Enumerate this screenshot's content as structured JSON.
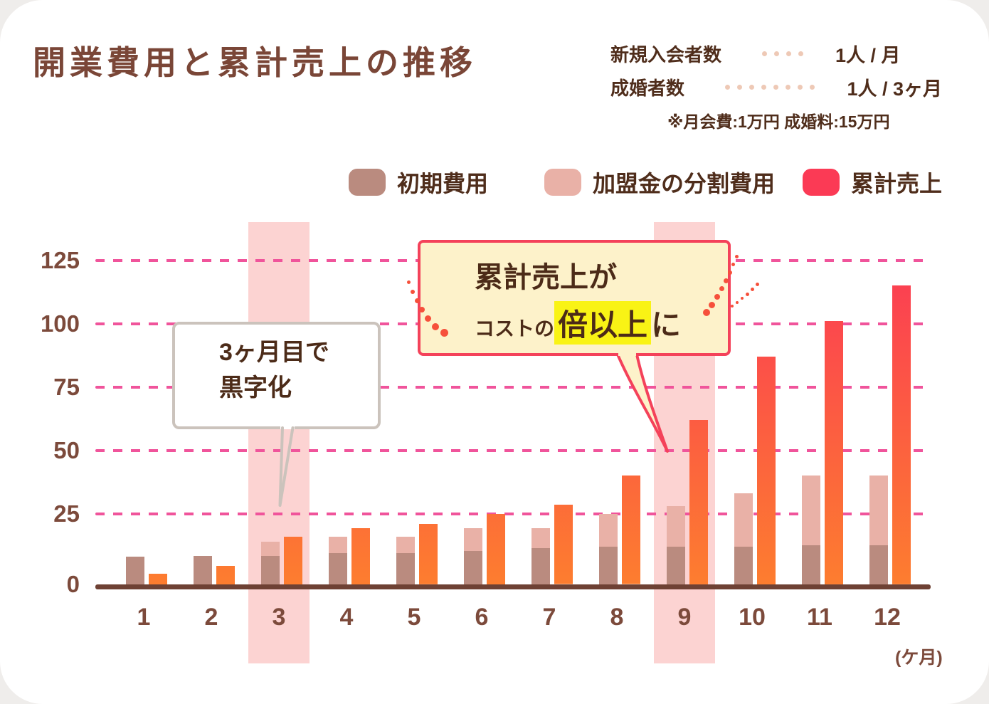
{
  "title": "開業費用と累計売上の推移",
  "assumptions": {
    "rows": [
      {
        "label": "新規入会者数",
        "value": "1人 / 月",
        "dots": 4
      },
      {
        "label": "成婚者数",
        "value": "1人 / 3ヶ月",
        "dots": 8
      }
    ],
    "note": "※月会費:1万円 成婚料:15万円"
  },
  "legend": {
    "items": [
      {
        "label": "初期費用",
        "color": "#ba8b7f"
      },
      {
        "label": "加盟金の分割費用",
        "color": "#e9b1a7"
      },
      {
        "label": "累計売上",
        "color": "#fb3a55"
      }
    ]
  },
  "callouts": {
    "breakeven": {
      "line1": "3ヶ月目で",
      "line2": "黒字化"
    },
    "double": {
      "line1": "累計売上が",
      "line2_prefix": "コストの",
      "line2_highlight": "倍以上",
      "line2_suffix": "に"
    }
  },
  "x_axis_unit": "(ケ月)",
  "chart_data": {
    "type": "bar",
    "title": "開業費用と累計売上の推移",
    "categories": [
      "1",
      "2",
      "3",
      "4",
      "5",
      "6",
      "7",
      "8",
      "9",
      "10",
      "11",
      "12"
    ],
    "xlabel": "(ケ月)",
    "ylabel": "",
    "ylim": [
      0,
      140
    ],
    "yticks": [
      0,
      25,
      50,
      75,
      100,
      125
    ],
    "grid": "horizontal-dashed",
    "gridline_color": "#f0549b",
    "legend_position": "top",
    "highlighted_months": [
      3,
      9
    ],
    "highlight_band_color": "#fcd3d2",
    "series": [
      {
        "name": "初期費用",
        "color": "#ba8b7f",
        "values": [
          8,
          8.5,
          8.5,
          9.5,
          9.5,
          10.5,
          11.5,
          12,
          12,
          12,
          12.5,
          12.5
        ]
      },
      {
        "name": "加盟金の分割費用",
        "color": "#e9b1a7",
        "stacked_on": "初期費用",
        "values": [
          0,
          0,
          5.5,
          6.5,
          6.5,
          9,
          8,
          13,
          16,
          21,
          27.5,
          27.5
        ]
      },
      {
        "name": "累計売上",
        "color_top": "#fb3a55",
        "color_bottom": "#fd7d2f",
        "values": [
          1.5,
          4.5,
          16,
          19.5,
          21,
          25,
          28.5,
          40,
          62,
          87,
          101,
          115
        ]
      }
    ]
  }
}
